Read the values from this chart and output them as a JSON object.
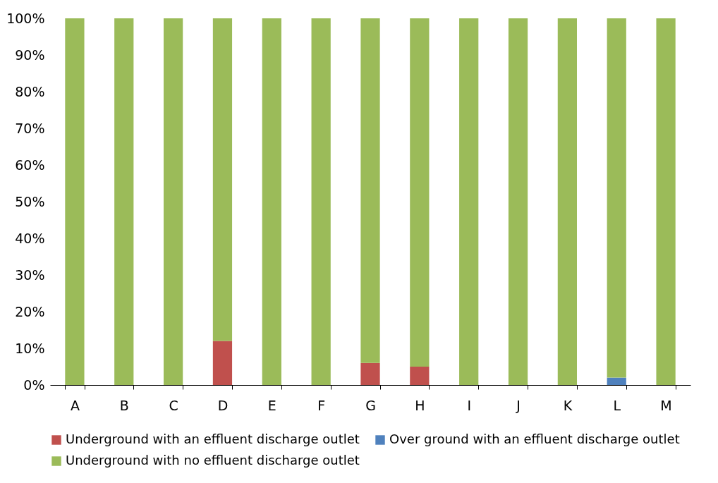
{
  "chart_data": {
    "type": "bar",
    "stacked": true,
    "categories": [
      "A",
      "B",
      "C",
      "D",
      "E",
      "F",
      "G",
      "H",
      "I",
      "J",
      "K",
      "L",
      "M"
    ],
    "series": [
      {
        "name": "Underground with an effluent discharge outlet",
        "color": "#c0504d",
        "values": [
          0,
          0,
          0,
          12,
          0,
          0,
          6,
          5,
          0,
          0,
          0,
          0,
          0
        ]
      },
      {
        "name": "Over ground with an effluent discharge outlet",
        "color": "#4f81bd",
        "values": [
          0,
          0,
          0,
          0,
          0,
          0,
          0,
          0,
          0,
          0,
          0,
          2,
          0
        ]
      },
      {
        "name": "Underground with no effluent discharge outlet",
        "color": "#9bbb59",
        "values": [
          100,
          100,
          100,
          88,
          100,
          100,
          94,
          95,
          100,
          100,
          100,
          98,
          100
        ]
      }
    ],
    "ylim": [
      0,
      100
    ],
    "yticks": [
      {
        "value": 0,
        "label": "0%"
      },
      {
        "value": 10,
        "label": "10%"
      },
      {
        "value": 20,
        "label": "20%"
      },
      {
        "value": 30,
        "label": "30%"
      },
      {
        "value": 40,
        "label": "40%"
      },
      {
        "value": 50,
        "label": "50%"
      },
      {
        "value": 60,
        "label": "60%"
      },
      {
        "value": 70,
        "label": "70%"
      },
      {
        "value": 80,
        "label": "80%"
      },
      {
        "value": 90,
        "label": "90%"
      },
      {
        "value": 100,
        "label": "100%"
      }
    ],
    "grid": false,
    "legend": "bottom"
  }
}
